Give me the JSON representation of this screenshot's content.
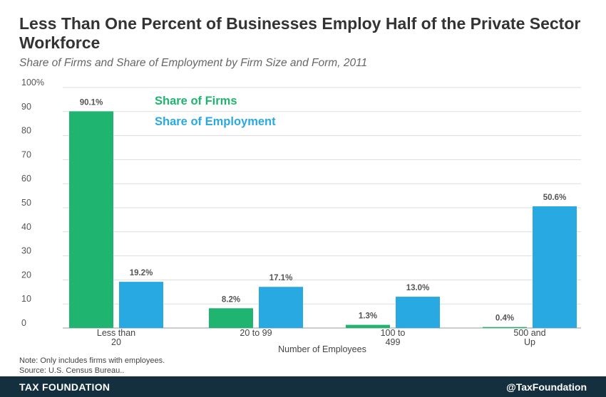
{
  "header": {
    "title": "Less Than One Percent of Businesses Employ Half of the Private Sector Workforce",
    "subtitle": "Share of Firms and Share of Employment by Firm Size and Form, 2011"
  },
  "chart_data": {
    "type": "bar",
    "title": "Less Than One Percent of Businesses Employ Half of the Private Sector Workforce",
    "subtitle": "Share of Firms and Share of Employment by Firm Size and Form, 2011",
    "categories": [
      [
        "Less than",
        "20"
      ],
      [
        "20 to 99"
      ],
      [
        "100 to",
        "499"
      ],
      [
        "500 and",
        "Up"
      ]
    ],
    "series": [
      {
        "name": "Share of Firms",
        "color": "#1fb46f",
        "values": [
          90.1,
          8.2,
          1.3,
          0.4
        ],
        "labels": [
          "90.1%",
          "8.2%",
          "1.3%",
          "0.4%"
        ]
      },
      {
        "name": "Share of Employment",
        "color": "#29a9e1",
        "values": [
          19.2,
          17.1,
          13.0,
          50.6
        ],
        "labels": [
          "19.2%",
          "17.1%",
          "13.0%",
          "50.6%"
        ]
      }
    ],
    "xlabel": "Number of Employees",
    "ylabel": "",
    "ylim": [
      0,
      100
    ],
    "yticks": [
      "0",
      "10",
      "20",
      "30",
      "40",
      "50",
      "60",
      "70",
      "80",
      "90",
      "100%"
    ],
    "grid": true,
    "legend": "top-left"
  },
  "notes": {
    "note": "Note: Only includes firms with employees.",
    "source": "Source: U.S. Census Bureau.."
  },
  "footer": {
    "brand": "TAX FOUNDATION",
    "handle": "@TaxFoundation",
    "background": "#14303f"
  }
}
